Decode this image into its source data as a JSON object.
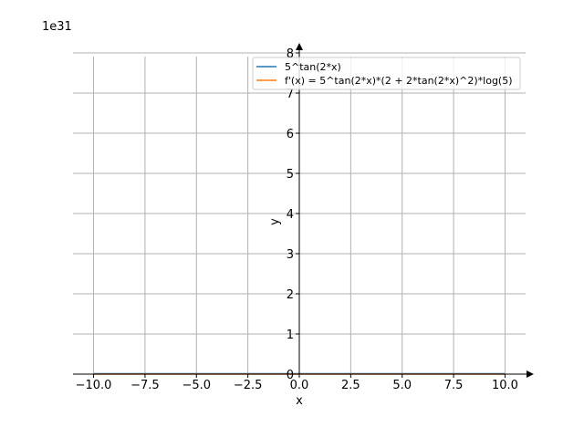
{
  "chart_data": {
    "type": "line",
    "title": "",
    "xlabel": "x",
    "ylabel": "y",
    "y_offset_label": "1e31",
    "xlim": [
      -11.0,
      11.0
    ],
    "ylim": [
      0,
      8
    ],
    "x_ticks": [
      -10.0,
      -7.5,
      -5.0,
      -2.5,
      0.0,
      2.5,
      5.0,
      7.5,
      10.0
    ],
    "x_tick_labels": [
      "−10.0",
      "−7.5",
      "−5.0",
      "−2.5",
      "0.0",
      "2.5",
      "5.0",
      "7.5",
      "10.0"
    ],
    "y_ticks": [
      0,
      1,
      2,
      3,
      4,
      5,
      6,
      7,
      8
    ],
    "y_tick_labels": [
      "0",
      "1",
      "2",
      "3",
      "4",
      "5",
      "6",
      "7",
      "8"
    ],
    "grid": true,
    "legend_position": "top-right",
    "series": [
      {
        "name": "5^tan(2*x)",
        "color": "#1f77b4",
        "x": [
          -10,
          10
        ],
        "y": [
          0,
          0
        ]
      },
      {
        "name": "f'(x) = 5^tan(2*x)*(2 + 2*tan(2*x)^2)*log(5)",
        "color": "#ff7f0e",
        "x": [
          -10,
          10
        ],
        "y": [
          0,
          0
        ]
      }
    ]
  }
}
